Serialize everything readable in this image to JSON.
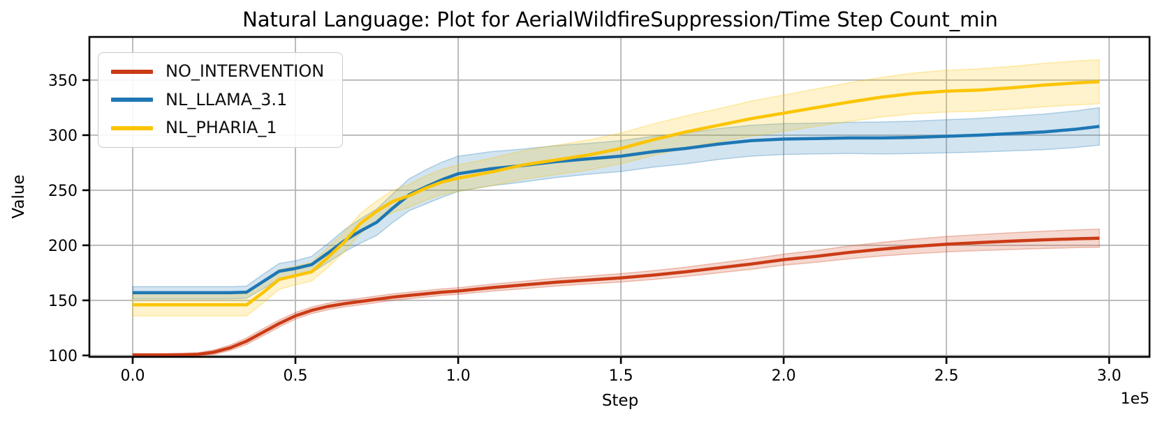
{
  "chart_data": {
    "type": "line",
    "title": "Natural Language: Plot for AerialWildfireSuppression/Time Step Count_min",
    "xlabel": "Step",
    "ylabel": "Value",
    "x_offset_label": "1e5",
    "x_unit_multiplier": 100000,
    "grid": true,
    "legend_location": "upper left",
    "background_color": "#ffffff",
    "grid_color": "#b4b4b4",
    "spine_color": "#000000",
    "xlim": [
      -0.133,
      3.124
    ],
    "ylim": [
      98.7,
      389.2
    ],
    "xticks": [
      0.0,
      0.5,
      1.0,
      1.5,
      2.0,
      2.5,
      3.0
    ],
    "xtick_labels": [
      "0.0",
      "0.5",
      "1.0",
      "1.5",
      "2.0",
      "2.5",
      "3.0"
    ],
    "yticks": [
      100,
      150,
      200,
      250,
      300,
      350
    ],
    "ytick_labels": [
      "100",
      "150",
      "200",
      "250",
      "300",
      "350"
    ],
    "x": [
      0,
      0.05,
      0.1,
      0.15,
      0.2,
      0.25,
      0.3,
      0.35,
      0.4,
      0.45,
      0.5,
      0.55,
      0.6,
      0.65,
      0.7,
      0.75,
      0.8,
      0.85,
      0.9,
      0.95,
      1.0,
      1.1,
      1.2,
      1.3,
      1.4,
      1.5,
      1.6,
      1.7,
      1.8,
      1.9,
      2.0,
      2.1,
      2.2,
      2.3,
      2.4,
      2.5,
      2.6,
      2.7,
      2.8,
      2.9,
      2.97
    ],
    "series": [
      {
        "name": "NO_INTERVENTION",
        "color": "#cb3b16",
        "values": [
          100.5,
          100.5,
          100.5,
          100.6,
          101,
          103,
          107,
          113,
          121,
          129,
          136,
          141,
          144.5,
          147,
          149,
          151,
          153,
          154.5,
          156,
          157.5,
          158.5,
          161.5,
          164,
          166.5,
          168.5,
          170.5,
          173,
          176,
          179.5,
          183,
          187,
          190,
          193.5,
          196.5,
          199,
          201,
          202.5,
          203.8,
          205,
          206,
          206.5
        ],
        "band": [
          1.2,
          1.2,
          1.2,
          1.3,
          1.5,
          2,
          2.5,
          3,
          3.2,
          3.2,
          3,
          3,
          3,
          3,
          3,
          3,
          3,
          3,
          3,
          3,
          3,
          3.2,
          3.4,
          3.5,
          3.6,
          3.8,
          4,
          4.2,
          4.5,
          4.8,
          5,
          5.4,
          5.8,
          6.2,
          6.6,
          7,
          7.3,
          7.6,
          7.9,
          8.1,
          8.3
        ]
      },
      {
        "name": "NL_LLAMA_3.1",
        "color": "#1e77b4",
        "values": [
          157,
          157,
          157,
          157,
          157,
          157,
          157,
          157.5,
          167,
          176.5,
          179,
          182.5,
          193,
          204,
          213,
          221,
          234,
          246,
          253,
          259.5,
          265,
          269.5,
          272.5,
          276,
          278.5,
          281,
          285,
          288,
          292,
          295,
          296.5,
          297,
          297.5,
          297.5,
          298,
          299,
          300,
          301.5,
          303,
          305.5,
          308
        ],
        "band": [
          5.5,
          5.5,
          5.5,
          5.5,
          5.5,
          5.5,
          5.5,
          5.5,
          6.5,
          7,
          7,
          7.5,
          8.5,
          10,
          11,
          12,
          13,
          14.5,
          15.5,
          16,
          16,
          15.5,
          15,
          14.5,
          14,
          14,
          14,
          14,
          14,
          14,
          14,
          14,
          14.2,
          14.5,
          14.7,
          15,
          15.3,
          15.7,
          16.2,
          16.6,
          17
        ]
      },
      {
        "name": "NL_PHARIA_1",
        "color": "#fcc402",
        "values": [
          146,
          146,
          146,
          146,
          146,
          146,
          146,
          146,
          157,
          169,
          172.5,
          176,
          189,
          203,
          220,
          231,
          240,
          245,
          252,
          257.5,
          261,
          266.5,
          273,
          277.5,
          282,
          288,
          296,
          303,
          309,
          315,
          320,
          325,
          330,
          334.5,
          338,
          340,
          341,
          343,
          345.5,
          347.5,
          348.5
        ],
        "band": [
          10,
          10,
          10,
          10,
          10,
          10,
          10,
          10,
          9.5,
          9,
          8.5,
          8.5,
          9,
          9,
          9,
          9.5,
          10,
          10.5,
          11,
          11.5,
          12,
          12.5,
          13,
          13.3,
          13.6,
          14,
          14.3,
          14.6,
          15,
          16,
          16.5,
          17,
          17.5,
          18,
          18.5,
          19,
          19.2,
          19.5,
          19.7,
          19.9,
          20
        ]
      }
    ]
  }
}
